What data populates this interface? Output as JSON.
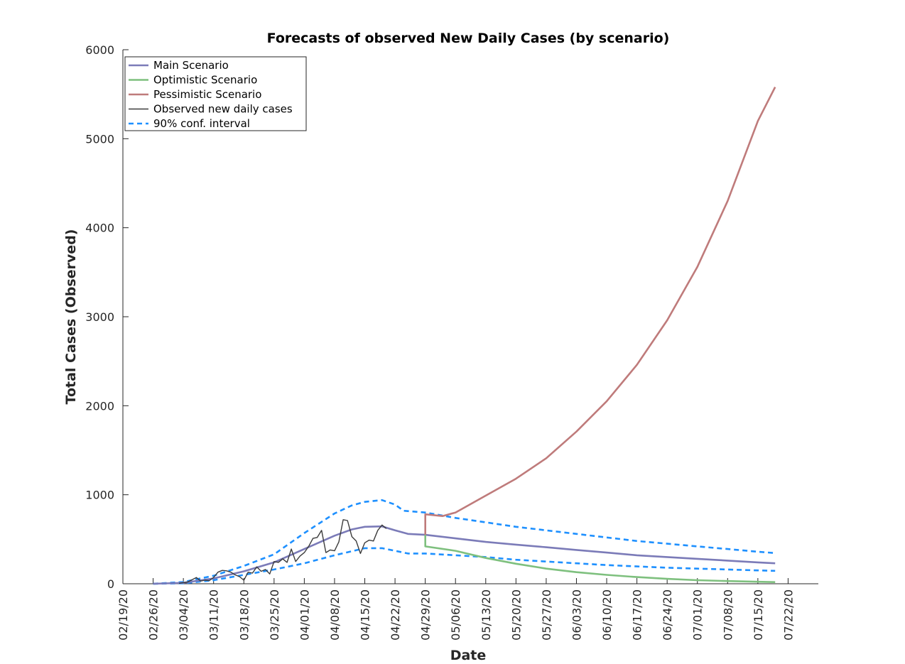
{
  "chart_data": {
    "type": "line",
    "title": "Forecasts of observed New Daily Cases (by scenario)",
    "xlabel": "Date",
    "ylabel": "Total Cases (Observed)",
    "xlim": [
      "2020-02-19",
      "2020-07-29"
    ],
    "ylim": [
      0,
      6000
    ],
    "y_ticks": [
      0,
      1000,
      2000,
      3000,
      4000,
      5000,
      6000
    ],
    "x_tick_labels": [
      "02/19/20",
      "02/26/20",
      "03/04/20",
      "03/11/20",
      "03/18/20",
      "03/25/20",
      "04/01/20",
      "04/08/20",
      "04/15/20",
      "04/22/20",
      "04/29/20",
      "05/06/20",
      "05/13/20",
      "05/20/20",
      "05/27/20",
      "06/03/20",
      "06/10/20",
      "06/17/20",
      "06/24/20",
      "07/01/20",
      "07/08/20",
      "07/15/20",
      "07/22/20"
    ],
    "x_tick_dates": [
      "2020-02-19",
      "2020-02-26",
      "2020-03-04",
      "2020-03-11",
      "2020-03-18",
      "2020-03-25",
      "2020-04-01",
      "2020-04-08",
      "2020-04-15",
      "2020-04-22",
      "2020-04-29",
      "2020-05-06",
      "2020-05-13",
      "2020-05-20",
      "2020-05-27",
      "2020-06-03",
      "2020-06-10",
      "2020-06-17",
      "2020-06-24",
      "2020-07-01",
      "2020-07-08",
      "2020-07-15",
      "2020-07-22"
    ],
    "grid": false,
    "legend_position": "top-left",
    "legend": [
      "Main Scenario",
      "Optimistic Scenario",
      "Pessimistic Scenario",
      "Observed new daily cases",
      "90% conf. interval"
    ],
    "series": [
      {
        "name": "Main Scenario",
        "color": "#7b7bb8",
        "style": "solid",
        "points": [
          [
            "2020-02-26",
            0
          ],
          [
            "2020-03-04",
            10
          ],
          [
            "2020-03-11",
            60
          ],
          [
            "2020-03-18",
            140
          ],
          [
            "2020-03-25",
            240
          ],
          [
            "2020-04-01",
            390
          ],
          [
            "2020-04-08",
            540
          ],
          [
            "2020-04-12",
            610
          ],
          [
            "2020-04-15",
            640
          ],
          [
            "2020-04-19",
            645
          ],
          [
            "2020-04-22",
            600
          ],
          [
            "2020-04-25",
            560
          ],
          [
            "2020-04-29",
            550
          ],
          [
            "2020-05-06",
            510
          ],
          [
            "2020-05-13",
            470
          ],
          [
            "2020-05-20",
            440
          ],
          [
            "2020-05-27",
            410
          ],
          [
            "2020-06-03",
            380
          ],
          [
            "2020-06-10",
            350
          ],
          [
            "2020-06-17",
            320
          ],
          [
            "2020-06-24",
            300
          ],
          [
            "2020-07-01",
            280
          ],
          [
            "2020-07-08",
            260
          ],
          [
            "2020-07-15",
            240
          ],
          [
            "2020-07-19",
            230
          ]
        ]
      },
      {
        "name": "Optimistic Scenario",
        "color": "#7ec07e",
        "style": "solid",
        "points": [
          [
            "2020-04-29",
            550
          ],
          [
            "2020-04-29",
            420
          ],
          [
            "2020-05-06",
            370
          ],
          [
            "2020-05-13",
            290
          ],
          [
            "2020-05-20",
            225
          ],
          [
            "2020-05-27",
            170
          ],
          [
            "2020-06-03",
            130
          ],
          [
            "2020-06-10",
            100
          ],
          [
            "2020-06-17",
            75
          ],
          [
            "2020-06-24",
            55
          ],
          [
            "2020-07-01",
            40
          ],
          [
            "2020-07-08",
            30
          ],
          [
            "2020-07-15",
            22
          ],
          [
            "2020-07-19",
            18
          ]
        ]
      },
      {
        "name": "Pessimistic Scenario",
        "color": "#bf7b7b",
        "style": "solid",
        "points": [
          [
            "2020-04-29",
            550
          ],
          [
            "2020-04-29",
            780
          ],
          [
            "2020-05-03",
            760
          ],
          [
            "2020-05-06",
            800
          ],
          [
            "2020-05-13",
            990
          ],
          [
            "2020-05-20",
            1180
          ],
          [
            "2020-05-27",
            1410
          ],
          [
            "2020-06-03",
            1710
          ],
          [
            "2020-06-10",
            2050
          ],
          [
            "2020-06-17",
            2460
          ],
          [
            "2020-06-24",
            2960
          ],
          [
            "2020-07-01",
            3560
          ],
          [
            "2020-07-08",
            4300
          ],
          [
            "2020-07-15",
            5200
          ],
          [
            "2020-07-19",
            5580
          ]
        ]
      },
      {
        "name": "Observed new daily cases",
        "color": "#3c3c3c",
        "style": "solid",
        "points": [
          [
            "2020-03-03",
            5
          ],
          [
            "2020-03-05",
            20
          ],
          [
            "2020-03-07",
            70
          ],
          [
            "2020-03-08",
            30
          ],
          [
            "2020-03-09",
            40
          ],
          [
            "2020-03-10",
            35
          ],
          [
            "2020-03-11",
            70
          ],
          [
            "2020-03-12",
            130
          ],
          [
            "2020-03-13",
            150
          ],
          [
            "2020-03-14",
            145
          ],
          [
            "2020-03-15",
            130
          ],
          [
            "2020-03-16",
            100
          ],
          [
            "2020-03-17",
            80
          ],
          [
            "2020-03-18",
            40
          ],
          [
            "2020-03-19",
            130
          ],
          [
            "2020-03-20",
            120
          ],
          [
            "2020-03-21",
            190
          ],
          [
            "2020-03-22",
            140
          ],
          [
            "2020-03-23",
            160
          ],
          [
            "2020-03-24",
            110
          ],
          [
            "2020-03-25",
            250
          ],
          [
            "2020-03-26",
            240
          ],
          [
            "2020-03-27",
            280
          ],
          [
            "2020-03-28",
            240
          ],
          [
            "2020-03-29",
            390
          ],
          [
            "2020-03-30",
            250
          ],
          [
            "2020-03-31",
            310
          ],
          [
            "2020-04-01",
            350
          ],
          [
            "2020-04-02",
            420
          ],
          [
            "2020-04-03",
            510
          ],
          [
            "2020-04-04",
            520
          ],
          [
            "2020-04-05",
            600
          ],
          [
            "2020-04-06",
            350
          ],
          [
            "2020-04-07",
            380
          ],
          [
            "2020-04-08",
            370
          ],
          [
            "2020-04-09",
            470
          ],
          [
            "2020-04-10",
            720
          ],
          [
            "2020-04-11",
            710
          ],
          [
            "2020-04-12",
            530
          ],
          [
            "2020-04-13",
            480
          ],
          [
            "2020-04-14",
            340
          ],
          [
            "2020-04-15",
            460
          ],
          [
            "2020-04-16",
            490
          ],
          [
            "2020-04-17",
            480
          ],
          [
            "2020-04-18",
            600
          ],
          [
            "2020-04-19",
            660
          ],
          [
            "2020-04-20",
            620
          ]
        ]
      },
      {
        "name": "90% conf. interval",
        "color": "#1e90ff",
        "style": "dashed",
        "points": [
          [
            "2020-02-26",
            0
          ],
          [
            "2020-03-04",
            20
          ],
          [
            "2020-03-11",
            90
          ],
          [
            "2020-03-18",
            200
          ],
          [
            "2020-03-25",
            330
          ],
          [
            "2020-04-01",
            570
          ],
          [
            "2020-04-08",
            790
          ],
          [
            "2020-04-12",
            880
          ],
          [
            "2020-04-15",
            920
          ],
          [
            "2020-04-19",
            940
          ],
          [
            "2020-04-22",
            890
          ],
          [
            "2020-04-24",
            820
          ],
          [
            "2020-04-29",
            800
          ],
          [
            "2020-05-06",
            740
          ],
          [
            "2020-05-13",
            690
          ],
          [
            "2020-05-20",
            640
          ],
          [
            "2020-05-27",
            600
          ],
          [
            "2020-06-03",
            560
          ],
          [
            "2020-06-10",
            520
          ],
          [
            "2020-06-17",
            480
          ],
          [
            "2020-06-24",
            450
          ],
          [
            "2020-07-01",
            420
          ],
          [
            "2020-07-08",
            390
          ],
          [
            "2020-07-15",
            360
          ],
          [
            "2020-07-19",
            345
          ]
        ]
      },
      {
        "name": "",
        "color": "#1e90ff",
        "style": "dashed",
        "points": [
          [
            "2020-02-26",
            0
          ],
          [
            "2020-03-04",
            5
          ],
          [
            "2020-03-11",
            40
          ],
          [
            "2020-03-18",
            100
          ],
          [
            "2020-03-25",
            160
          ],
          [
            "2020-04-01",
            230
          ],
          [
            "2020-04-08",
            320
          ],
          [
            "2020-04-15",
            400
          ],
          [
            "2020-04-19",
            400
          ],
          [
            "2020-04-22",
            370
          ],
          [
            "2020-04-25",
            340
          ],
          [
            "2020-04-29",
            340
          ],
          [
            "2020-05-06",
            320
          ],
          [
            "2020-05-13",
            300
          ],
          [
            "2020-05-20",
            270
          ],
          [
            "2020-05-27",
            250
          ],
          [
            "2020-06-03",
            230
          ],
          [
            "2020-06-10",
            210
          ],
          [
            "2020-06-17",
            195
          ],
          [
            "2020-06-24",
            180
          ],
          [
            "2020-07-01",
            170
          ],
          [
            "2020-07-08",
            160
          ],
          [
            "2020-07-15",
            150
          ],
          [
            "2020-07-19",
            145
          ]
        ]
      }
    ]
  }
}
